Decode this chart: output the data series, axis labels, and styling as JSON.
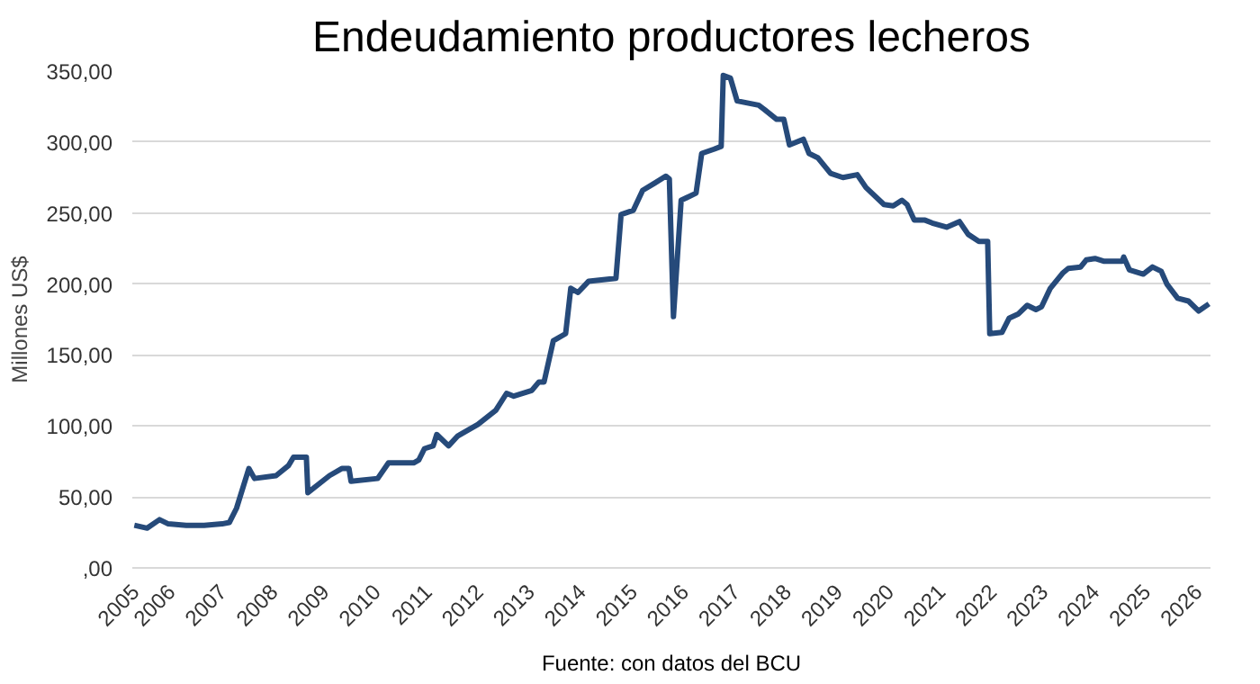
{
  "chart_data": {
    "type": "line",
    "title": "Endeudamiento productores lecheros",
    "ylabel": "Millones US$",
    "annotations": [
      "Fuente: con datos del BCU"
    ],
    "x": [
      2005.29,
      2005.54,
      2005.78,
      2005.95,
      2006.3,
      2006.65,
      2007.0,
      2007.14,
      2007.28,
      2007.52,
      2007.63,
      2008.05,
      2008.29,
      2008.39,
      2008.64,
      2008.67,
      2009.09,
      2009.33,
      2009.47,
      2009.51,
      2010.03,
      2010.24,
      2010.73,
      2010.83,
      2010.94,
      2011.11,
      2011.18,
      2011.41,
      2011.59,
      2011.98,
      2012.33,
      2012.54,
      2012.68,
      2013.03,
      2013.17,
      2013.27,
      2013.45,
      2013.69,
      2013.79,
      2013.93,
      2014.14,
      2014.67,
      2014.77,
      2015.01,
      2015.19,
      2015.42,
      2015.64,
      2015.71,
      2015.79,
      2015.94,
      2016.23,
      2016.34,
      2016.58,
      2016.72,
      2016.76,
      2016.9,
      2017.03,
      2017.45,
      2017.56,
      2017.8,
      2017.94,
      2018.05,
      2018.32,
      2018.43,
      2018.6,
      2018.85,
      2019.09,
      2019.37,
      2019.54,
      2019.89,
      2020.07,
      2020.24,
      2020.34,
      2020.48,
      2020.69,
      2020.83,
      2021.11,
      2021.36,
      2021.53,
      2021.74,
      2021.91,
      2021.95,
      2022.19,
      2022.33,
      2022.51,
      2022.68,
      2022.85,
      2022.96,
      2023.13,
      2023.38,
      2023.48,
      2023.72,
      2023.83,
      2024.0,
      2024.18,
      2024.53,
      2024.56,
      2024.67,
      2024.94,
      2025.12,
      2025.29,
      2025.4,
      2025.61,
      2025.82,
      2026.02,
      2026.22
    ],
    "series": [
      {
        "color": "#264a7a",
        "values": [
          30,
          28,
          34,
          31,
          30,
          30,
          31,
          32,
          42,
          70,
          63,
          65,
          72,
          78,
          78,
          53,
          65,
          70,
          70,
          61,
          63,
          74,
          74,
          76,
          84,
          86,
          94,
          86,
          93,
          101,
          111,
          123,
          121,
          125,
          131,
          131,
          160,
          165,
          197,
          194,
          202,
          204,
          249,
          252,
          266,
          271,
          276,
          274,
          177,
          259,
          264,
          292,
          295,
          297,
          347,
          345,
          329,
          326,
          323,
          316,
          316,
          298,
          302,
          292,
          289,
          278,
          275,
          277,
          268,
          256,
          255,
          259,
          256,
          245,
          245,
          243,
          240,
          244,
          235,
          230,
          230,
          165,
          166,
          176,
          179,
          185,
          182,
          184,
          197,
          208,
          211,
          212,
          217,
          218,
          216,
          216,
          219,
          210,
          207,
          212,
          209,
          200,
          190,
          188,
          181,
          186
        ]
      }
    ],
    "xlim": [
      2005.25,
      2026.25
    ],
    "xticks": [
      {
        "value": 2005.3,
        "label": "2005"
      },
      2006,
      2007,
      2008,
      2009,
      2010,
      2011,
      2012,
      2013,
      2014,
      2015,
      2016,
      2017,
      2018,
      2019,
      2020,
      2021,
      2022,
      2023,
      2024,
      2025,
      2026
    ],
    "ylim": [
      0,
      350
    ],
    "yticks": [
      {
        "value": 0,
        "label": ",00"
      },
      {
        "value": 50,
        "label": "50,00"
      },
      {
        "value": 100,
        "label": "100,00"
      },
      {
        "value": 150,
        "label": "150,00"
      },
      {
        "value": 200,
        "label": "200,00"
      },
      {
        "value": 250,
        "label": "250,00"
      },
      {
        "value": 300,
        "label": "300,00"
      },
      {
        "value": 350,
        "label": "350,00"
      }
    ],
    "grid": "y",
    "line_style": "solid",
    "marker": "none"
  }
}
